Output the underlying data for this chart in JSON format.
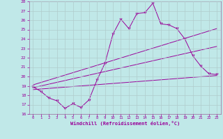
{
  "xlabel": "Windchill (Refroidissement éolien,°C)",
  "ylabel": "",
  "bg_color": "#c0e8e8",
  "line_color": "#990099",
  "grid_color": "#b0cccc",
  "border_color": "#996699",
  "xlim": [
    -0.5,
    23.5
  ],
  "ylim": [
    16,
    28
  ],
  "yticks": [
    16,
    17,
    18,
    19,
    20,
    21,
    22,
    23,
    24,
    25,
    26,
    27,
    28
  ],
  "xticks": [
    0,
    1,
    2,
    3,
    4,
    5,
    6,
    7,
    8,
    9,
    10,
    11,
    12,
    13,
    14,
    15,
    16,
    17,
    18,
    19,
    20,
    21,
    22,
    23
  ],
  "series1_x": [
    0,
    1,
    2,
    3,
    4,
    5,
    6,
    7,
    8,
    9,
    10,
    11,
    12,
    13,
    14,
    15,
    16,
    17,
    18,
    19,
    20,
    21,
    22,
    23
  ],
  "series1_y": [
    18.9,
    18.4,
    17.7,
    17.4,
    16.6,
    17.1,
    16.7,
    17.5,
    19.6,
    21.4,
    24.5,
    26.1,
    25.1,
    26.7,
    26.8,
    27.8,
    25.6,
    25.5,
    25.1,
    24.0,
    22.2,
    21.1,
    20.3,
    20.2
  ],
  "series2_x": [
    0,
    23
  ],
  "series2_y": [
    18.6,
    20.1
  ],
  "series3_x": [
    0,
    23
  ],
  "series3_y": [
    19.1,
    25.1
  ],
  "series4_x": [
    0,
    23
  ],
  "series4_y": [
    18.8,
    23.2
  ]
}
